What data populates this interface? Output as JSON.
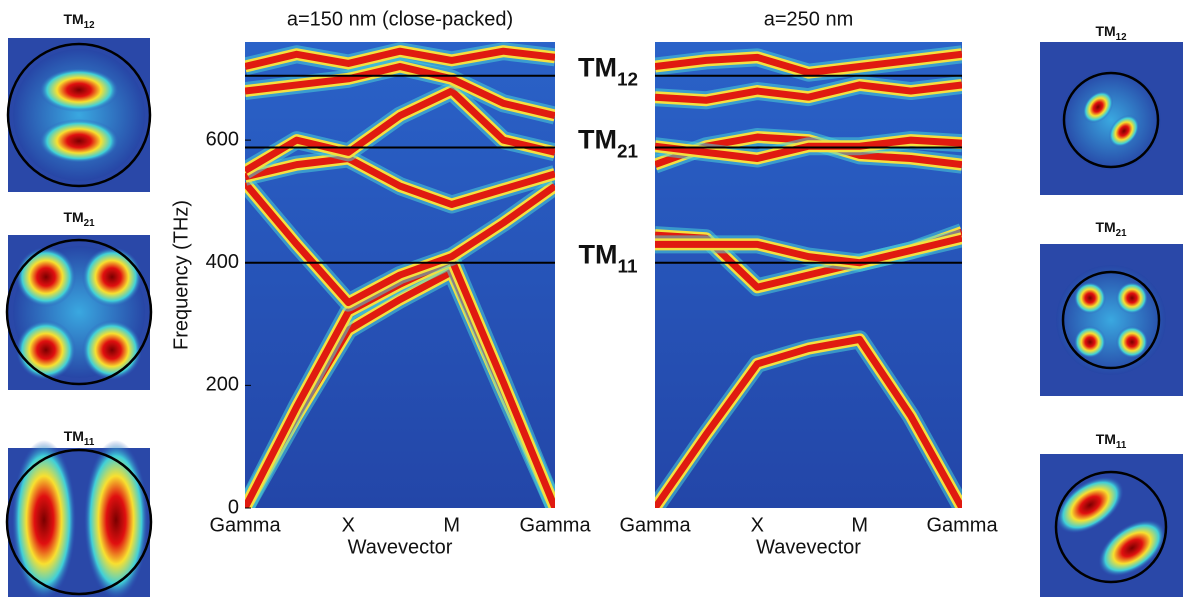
{
  "chart_data": [
    {
      "type": "band",
      "title": "a=150 nm (close-packed)",
      "x_label": "Wavevector",
      "y_label": "Frequency (THz)",
      "categories": [
        "Gamma",
        null,
        "X",
        null,
        "M",
        null,
        "Gamma"
      ],
      "ylim": [
        0,
        760
      ],
      "yticks": [
        0,
        200,
        400,
        600
      ],
      "hlines": [
        705,
        588,
        400
      ],
      "series": [
        {
          "values": [
            0,
            150,
            290,
            340,
            385,
            190,
            0
          ]
        },
        {
          "values": [
            0,
            165,
            320,
            365,
            405,
            205,
            0
          ]
        },
        {
          "values": [
            530,
            430,
            335,
            380,
            410,
            465,
            525
          ]
        },
        {
          "values": [
            540,
            560,
            570,
            525,
            495,
            520,
            545
          ]
        },
        {
          "values": [
            550,
            600,
            580,
            640,
            680,
            600,
            580
          ]
        },
        {
          "values": [
            680,
            690,
            700,
            720,
            700,
            660,
            640
          ]
        },
        {
          "values": [
            720,
            740,
            725,
            745,
            730,
            745,
            735
          ]
        }
      ]
    },
    {
      "type": "band",
      "title": "a=250 nm",
      "x_label": "Wavevector",
      "categories": [
        "Gamma",
        null,
        "X",
        null,
        "M",
        null,
        "Gamma"
      ],
      "ylim": [
        0,
        760
      ],
      "hlines": [
        705,
        588,
        400
      ],
      "series": [
        {
          "values": [
            0,
            120,
            235,
            260,
            275,
            150,
            0
          ]
        },
        {
          "values": [
            445,
            440,
            360,
            380,
            400,
            420,
            450
          ]
        },
        {
          "values": [
            430,
            430,
            430,
            410,
            400,
            420,
            440
          ]
        },
        {
          "values": [
            560,
            590,
            605,
            600,
            575,
            570,
            560
          ]
        },
        {
          "values": [
            590,
            580,
            570,
            590,
            590,
            600,
            595
          ]
        },
        {
          "values": [
            670,
            665,
            680,
            670,
            690,
            680,
            690
          ]
        },
        {
          "values": [
            720,
            730,
            735,
            710,
            720,
            730,
            740
          ]
        }
      ]
    }
  ],
  "mode_labels": [
    {
      "name": "TM",
      "sub": "12"
    },
    {
      "name": "TM",
      "sub": "21"
    },
    {
      "name": "TM",
      "sub": "11"
    }
  ],
  "left_images": [
    {
      "name": "TM",
      "sub": "12"
    },
    {
      "name": "TM",
      "sub": "21"
    },
    {
      "name": "TM",
      "sub": "11"
    }
  ],
  "right_images": [
    {
      "name": "TM",
      "sub": "12"
    },
    {
      "name": "TM",
      "sub": "21"
    },
    {
      "name": "TM",
      "sub": "11"
    }
  ]
}
